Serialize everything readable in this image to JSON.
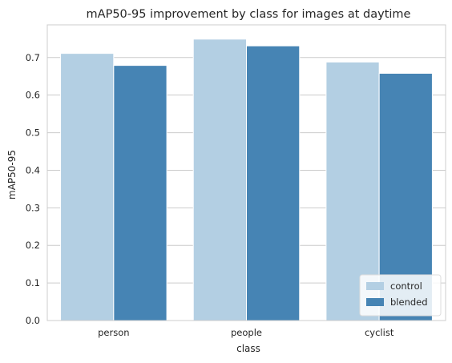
{
  "chart_data": {
    "type": "bar",
    "title": "mAP50-95 improvement by class for images at daytime",
    "xlabel": "class",
    "ylabel": "mAP50-95",
    "categories": [
      "person",
      "people",
      "cyclist"
    ],
    "series": [
      {
        "name": "control",
        "values": [
          0.711,
          0.749,
          0.688
        ],
        "color": "#b3cfe3"
      },
      {
        "name": "blended",
        "values": [
          0.679,
          0.731,
          0.658
        ],
        "color": "#4684b4"
      }
    ],
    "ylim": [
      0,
      0.787
    ],
    "yticks": [
      0.0,
      0.1,
      0.2,
      0.3,
      0.4,
      0.5,
      0.6,
      0.7
    ],
    "grid": true,
    "legend_position": "bottom-right"
  }
}
